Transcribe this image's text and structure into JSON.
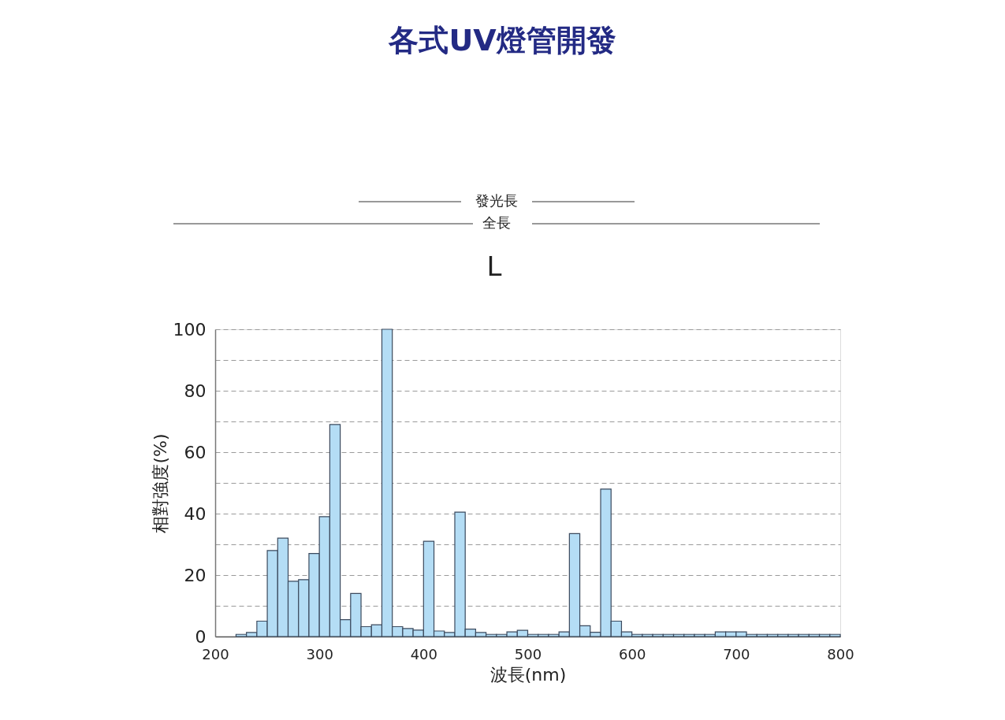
{
  "chart_data": {
    "type": "histogram",
    "title": "各式UV燈管開發",
    "xlabel": "波長(nm)",
    "ylabel": "相對強度(%)",
    "annotations": [
      "發光長",
      "全長",
      "L"
    ],
    "bins": [
      220,
      230,
      240,
      250,
      260,
      270,
      280,
      290,
      300,
      310,
      320,
      330,
      340,
      350,
      360,
      370,
      380,
      390,
      400,
      410,
      420,
      430,
      440,
      450,
      460,
      470,
      480,
      490,
      500,
      510,
      520,
      530,
      540,
      550,
      560,
      570,
      580,
      590,
      600,
      610,
      620,
      630,
      640,
      650,
      660,
      670,
      680,
      690,
      700,
      710,
      720,
      730,
      740,
      750,
      760,
      770,
      780,
      790,
      800
    ],
    "values": [
      0.7,
      1.3,
      5,
      28,
      32,
      18,
      18.5,
      27,
      39,
      69,
      5.5,
      14,
      3.2,
      3.8,
      100,
      3.2,
      2.6,
      2.1,
      31,
      1.8,
      1.3,
      40.5,
      2.4,
      1.3,
      0.7,
      0.7,
      1.5,
      2,
      0.7,
      0.7,
      0.7,
      1.5,
      33.5,
      3.5,
      1.4,
      48,
      5,
      1.5,
      0.7,
      0.7,
      0.7,
      0.7,
      0.7,
      0.7,
      0.7,
      0.7,
      1.5,
      1.5,
      1.5,
      0.7,
      0.7,
      0.7,
      0.7,
      0.7,
      0.7,
      0.7,
      0.7,
      0.7
    ],
    "color": "#b4ddf5",
    "xlim": [
      200,
      800
    ],
    "xticks": [
      200,
      300,
      400,
      500,
      600,
      700,
      800
    ],
    "ylim": [
      0,
      100
    ],
    "yticks": [
      0,
      {
        "value": 10,
        "label": null
      },
      20,
      {
        "value": 30,
        "label": null
      },
      40,
      {
        "value": 50,
        "label": null
      },
      60,
      {
        "value": 70,
        "label": null
      },
      80,
      {
        "value": 90,
        "label": null
      },
      100
    ],
    "grid": "y"
  }
}
